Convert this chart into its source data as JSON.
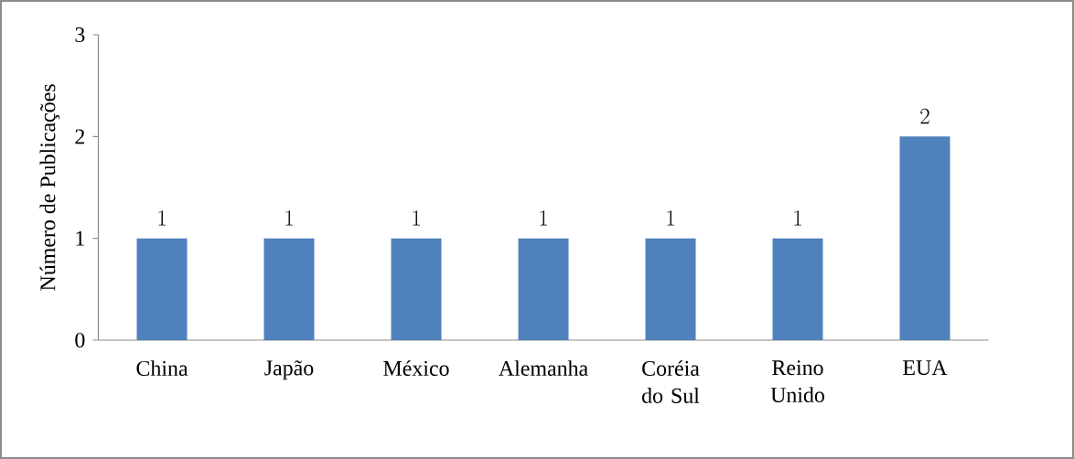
{
  "chart_data": {
    "type": "bar",
    "ylabel": "Número de Publicações",
    "categories": [
      "China",
      "Japão",
      "México",
      "Alemanha",
      "Coréia do Sul",
      "Reino Unido",
      "EUA"
    ],
    "values": [
      1,
      1,
      1,
      1,
      1,
      1,
      2
    ],
    "color": "#4f81bd",
    "ylim": [
      0,
      3
    ],
    "yticks": [
      0,
      1,
      2,
      3
    ],
    "data_labels": true
  }
}
